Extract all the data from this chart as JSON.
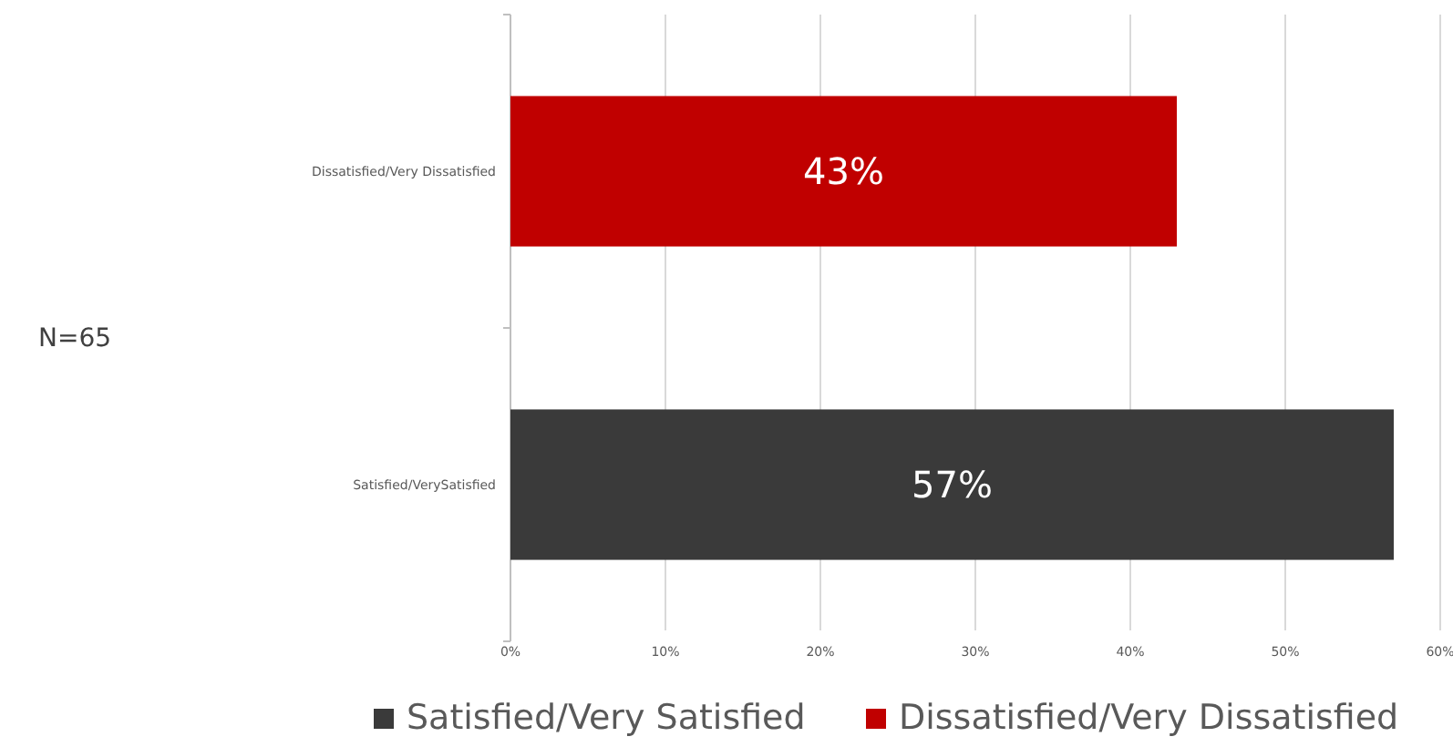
{
  "chart_data": {
    "type": "bar",
    "orientation": "horizontal",
    "categories": [
      "Dissatisfied/Very Dissatisfied",
      "Satisfied/VerySatisfied"
    ],
    "series": [
      {
        "name": "Satisfied/Very Satisfied",
        "color": "#3a3a3a",
        "values": [
          null,
          57
        ],
        "value_labels": [
          null,
          "57%"
        ]
      },
      {
        "name": "Dissatisfied/Very Dissatisfied",
        "color": "#c00000",
        "values": [
          43,
          null
        ],
        "value_labels": [
          "43%",
          null
        ]
      }
    ],
    "xlim": [
      0,
      60
    ],
    "xticks": [
      {
        "value": 0,
        "label": "0%"
      },
      {
        "value": 10,
        "label": "10%"
      },
      {
        "value": 20,
        "label": "20%"
      },
      {
        "value": 30,
        "label": "30%"
      },
      {
        "value": 40,
        "label": "40%"
      },
      {
        "value": 50,
        "label": "50%"
      },
      {
        "value": 60,
        "label": "60%"
      }
    ],
    "grid": "x",
    "legend": "bottom",
    "annotations": [
      "N=65"
    ]
  }
}
